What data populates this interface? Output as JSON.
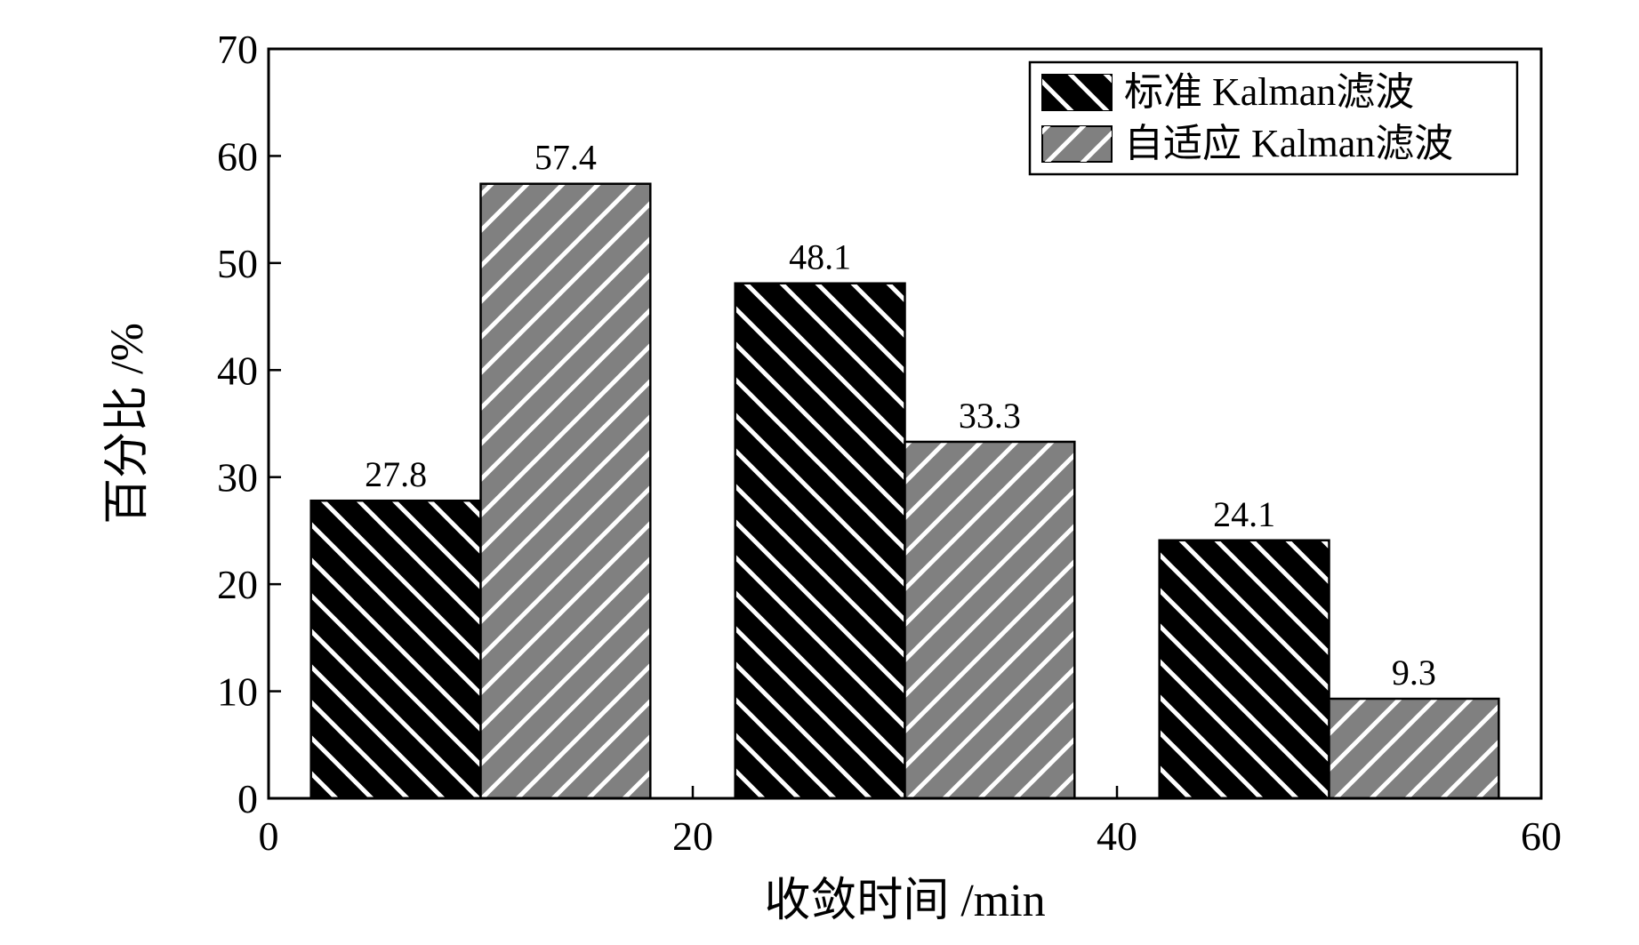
{
  "chart_data": {
    "type": "bar",
    "title": "",
    "xlabel": "收敛时间 /min",
    "ylabel": "百分比 /%",
    "xlim": [
      0,
      60
    ],
    "ylim": [
      0,
      70
    ],
    "xticks": [
      "0",
      "20",
      "40",
      "60"
    ],
    "yticks": [
      "0",
      "10",
      "20",
      "30",
      "40",
      "50",
      "60",
      "70"
    ],
    "bar_width": 8,
    "grid": false,
    "legend_position": "top-right",
    "series": [
      {
        "name": "标准 Kalman滤波",
        "x": [
          6,
          26,
          46
        ],
        "values": [
          27.8,
          48.1,
          24.1
        ],
        "labels": [
          "27.8",
          "48.1",
          "24.1"
        ],
        "color": "#000000",
        "hatch_color": "#ffffff",
        "hatch": "backslash"
      },
      {
        "name": "自适应 Kalman滤波",
        "x": [
          14,
          34,
          54
        ],
        "values": [
          57.4,
          33.3,
          9.3
        ],
        "labels": [
          "57.4",
          "33.3",
          "9.3"
        ],
        "color": "#808080",
        "hatch_color": "#ffffff",
        "hatch": "slash"
      }
    ]
  }
}
